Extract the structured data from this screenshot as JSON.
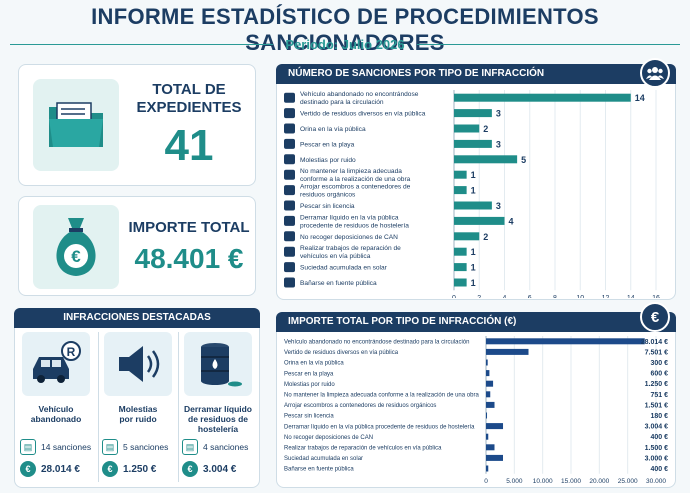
{
  "header": {
    "title": "INFORME ESTADÍSTICO DE PROCEDIMIENTOS SANCIONADORES",
    "period": "Periodo: Julio 2026"
  },
  "kpis": {
    "total_label_1": "TOTAL DE",
    "total_label_2": "EXPEDIENTES",
    "total_value": "41",
    "amount_label": "IMPORTE TOTAL",
    "amount_value": "48.401 €"
  },
  "featured": {
    "title": "INFRACCIONES DESTACADAS",
    "items": [
      {
        "name_1": "Vehículo",
        "name_2": "abandonado",
        "count": "14 sanciones",
        "amount": "28.014 €"
      },
      {
        "name_1": "Molestias",
        "name_2": "por ruido",
        "count": "5 sanciones",
        "amount": "1.250 €"
      },
      {
        "name_1": "Derramar líquido",
        "name_2": "de residuos de hostelería",
        "count": "4 sanciones",
        "amount": "3.004 €"
      }
    ]
  },
  "colors": {
    "navy": "#1c3d63",
    "teal": "#1f8d89",
    "bar_blue": "#1c4a8a"
  },
  "chart_data": [
    {
      "type": "bar",
      "orientation": "horizontal",
      "title": "NÚMERO DE SANCIONES POR TIPO DE INFRACCIÓN",
      "categories": [
        "Vehículo abandonado no encontrándose destinado para la circulación",
        "Vertido de residuos diversos en vía pública",
        "Orina en la vía pública",
        "Pescar en la playa",
        "Molestias por ruido",
        "No mantener la limpieza adecuada conforme a la realización de una obra",
        "Arrojar escombros a contenedores de residuos orgánicos",
        "Pescar sin licencia",
        "Derramar líquido en la vía pública procedente de residuos de hostelería",
        "No recoger deposiciones de CAN",
        "Realizar trabajos de reparación de vehículos en vía pública",
        "Suciedad acumulada en solar",
        "Bañarse en fuente pública"
      ],
      "category_lines": [
        [
          "Vehículo abandonado no encontrándose",
          "destinado para la circulación"
        ],
        [
          "Vertido de residuos diversos en vía pública"
        ],
        [
          "Orina en la vía pública"
        ],
        [
          "Pescar en la playa"
        ],
        [
          "Molestias por ruido"
        ],
        [
          "No mantener la limpieza adecuada",
          "conforme a la realización de una obra"
        ],
        [
          "Arrojar escombros a contenedores de",
          "residuos orgánicos"
        ],
        [
          "Pescar sin licencia"
        ],
        [
          "Derramar líquido en la vía pública",
          "procedente de residuos de hostelería"
        ],
        [
          "No recoger deposiciones de CAN"
        ],
        [
          "Realizar trabajos de reparación de",
          "vehículos en vía pública"
        ],
        [
          "Suciedad acumulada en solar"
        ],
        [
          "Bañarse en fuente pública"
        ]
      ],
      "values": [
        14,
        3,
        2,
        3,
        5,
        1,
        1,
        3,
        4,
        2,
        1,
        1,
        1
      ],
      "xlim": [
        0,
        16
      ],
      "xticks": [
        0,
        2,
        4,
        6,
        8,
        10,
        12,
        14,
        16
      ],
      "color": "#1f8d89"
    },
    {
      "type": "bar",
      "orientation": "horizontal",
      "title": "IMPORTE TOTAL POR TIPO DE INFRACCIÓN (€)",
      "categories": [
        "Vehículo abandonado no encontrándose destinado para la circulación",
        "Vertido de residuos diversos en vía pública",
        "Orina en la vía pública",
        "Pescar en la playa",
        "Molestias por ruido",
        "No mantener la limpieza adecuada conforme a la realización de una obra",
        "Arrojar escombros a contenedores de residuos orgánicos",
        "Pescar sin licencia",
        "Derramar líquido en la vía pública procedente de residuos de hostelería",
        "No recoger deposiciones de CAN",
        "Realizar trabajos de reparación de vehículos en vía pública",
        "Suciedad acumulada en solar",
        "Bañarse en fuente pública"
      ],
      "values": [
        28014,
        7501,
        300,
        600,
        1250,
        751,
        1501,
        180,
        3004,
        400,
        1500,
        3000,
        400
      ],
      "value_labels": [
        "28.014 €",
        "7.501 €",
        "300 €",
        "600 €",
        "1.250 €",
        "751 €",
        "1.501 €",
        "180 €",
        "3.004 €",
        "400 €",
        "1.500 €",
        "3.000 €",
        "400 €"
      ],
      "xlim": [
        0,
        30000
      ],
      "xticks": [
        0,
        5000,
        10000,
        15000,
        20000,
        25000,
        30000
      ],
      "xtick_labels": [
        "0",
        "5.000",
        "10.000",
        "15.000",
        "20.000",
        "25.000",
        "30.000"
      ],
      "color": "#1c4a8a"
    }
  ]
}
